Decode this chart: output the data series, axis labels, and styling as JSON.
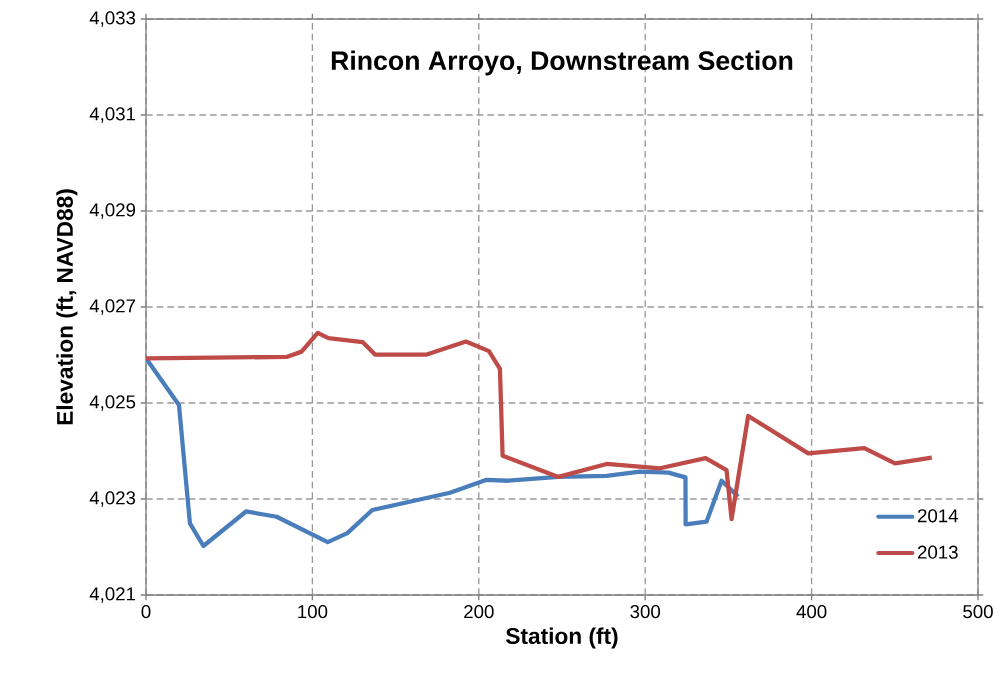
{
  "chart_data": {
    "type": "line",
    "title": "Rincon Arroyo, Downstream Section",
    "xlabel": "Station (ft)",
    "ylabel": "Elevation (ft, NAVD88)",
    "xlim": [
      0,
      500
    ],
    "xticks": [
      0,
      100,
      200,
      300,
      400,
      500
    ],
    "ylim": [
      4021,
      4033
    ],
    "yticks": [
      {
        "value": 4021,
        "label": "4,021"
      },
      {
        "value": 4023,
        "label": "4,023"
      },
      {
        "value": 4025,
        "label": "4,025"
      },
      {
        "value": 4027,
        "label": "4,027"
      },
      {
        "value": 4029,
        "label": "4,029"
      },
      {
        "value": 4031,
        "label": "4,031"
      },
      {
        "value": 4033,
        "label": "4,033"
      }
    ],
    "grid": true,
    "legend": "bottom right",
    "marker": "none",
    "line_style": "solid",
    "series": [
      {
        "name": "2014",
        "color": "#4a7ebb",
        "x": [
          0,
          19.8,
          26.4,
          34.5,
          60.1,
          78.5,
          109.2,
          121.0,
          136.0,
          182.7,
          204.7,
          217.7,
          247.8,
          276.8,
          296.9,
          313.9,
          324.2,
          324.3,
          336.9,
          345.9,
          355.9
        ],
        "values": [
          4025.93,
          4024.96,
          4022.49,
          4022.02,
          4022.74,
          4022.63,
          4022.1,
          4022.29,
          4022.77,
          4023.13,
          4023.4,
          4023.38,
          4023.46,
          4023.48,
          4023.57,
          4023.55,
          4023.45,
          4022.47,
          4022.53,
          4023.38,
          4023.05
        ]
      },
      {
        "name": "2013",
        "color": "#be4b48",
        "x": [
          0,
          84.5,
          93.5,
          103.2,
          109.6,
          130.2,
          137.6,
          168.7,
          192.3,
          206.1,
          212.7,
          214.3,
          247.8,
          276.8,
          308.9,
          336.3,
          348.9,
          351.9,
          361.9,
          398.0,
          431.7,
          450.1,
          472.2
        ],
        "values": [
          4025.93,
          4025.96,
          4026.07,
          4026.46,
          4026.35,
          4026.27,
          4026.01,
          4026.01,
          4026.28,
          4026.08,
          4025.71,
          4023.9,
          4023.46,
          4023.73,
          4023.64,
          4023.85,
          4023.6,
          4022.58,
          4024.73,
          4023.95,
          4024.06,
          4023.74,
          4023.86
        ]
      }
    ]
  }
}
